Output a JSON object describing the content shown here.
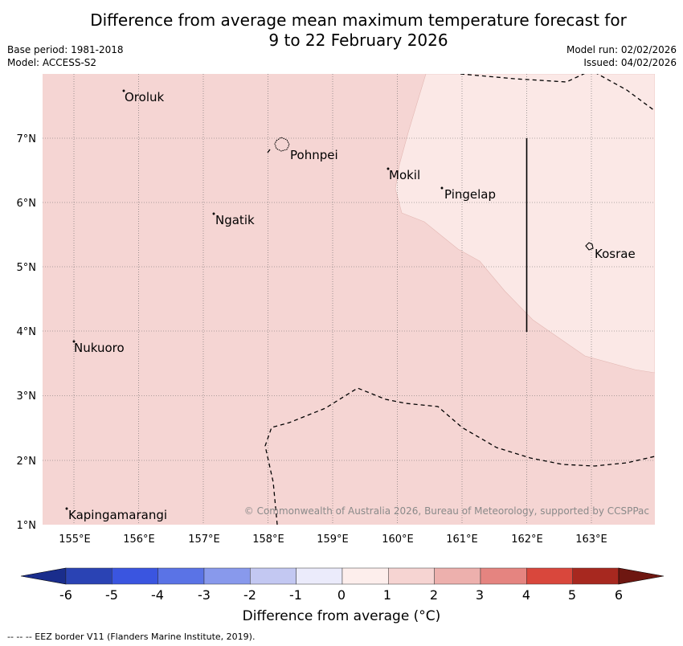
{
  "title": {
    "line1": "Difference from average mean maximum temperature forecast for",
    "line2": "9 to 22 February 2026"
  },
  "meta": {
    "base_period": "Base period: 1981-2018",
    "model": "Model: ACCESS-S2",
    "model_run": "Model run: 02/02/2026",
    "issued": "Issued: 04/02/2026"
  },
  "map": {
    "lat_labels": [
      "7°N",
      "6°N",
      "5°N",
      "4°N",
      "3°N",
      "2°N",
      "1°N"
    ],
    "lon_labels": [
      "155°E",
      "156°E",
      "157°E",
      "158°E",
      "159°E",
      "160°E",
      "161°E",
      "162°E",
      "163°E"
    ],
    "places": [
      "Oroluk",
      "Pohnpei",
      "Mokil",
      "Pingelap",
      "Ngatik",
      "Kosrae",
      "Nukuoro",
      "Kapingamarangi"
    ],
    "copyright": "© Commonwealth of Australia 2026, Bureau of Meteorology, supported by CCSPPac",
    "fill_colors": {
      "band_1_to_2": "#f5d5d3",
      "band_0_to_1": "#fbe8e6"
    }
  },
  "colorbar": {
    "ticks": [
      "-6",
      "-5",
      "-4",
      "-3",
      "-2",
      "-1",
      "0",
      "1",
      "2",
      "3",
      "4",
      "5",
      "6"
    ],
    "colors": [
      "#1a2d8c",
      "#2a43b4",
      "#3a55e0",
      "#5a73e6",
      "#8899ec",
      "#c3c8f2",
      "#ebebfb",
      "#fdeeec",
      "#f6d4d2",
      "#edb0ad",
      "#e58480",
      "#d9473c",
      "#a7281f",
      "#6e1711"
    ],
    "label": "Difference from average (°C)"
  },
  "footnote": "--  --  -- EEZ border V11 (Flanders Marine Institute, 2019)."
}
